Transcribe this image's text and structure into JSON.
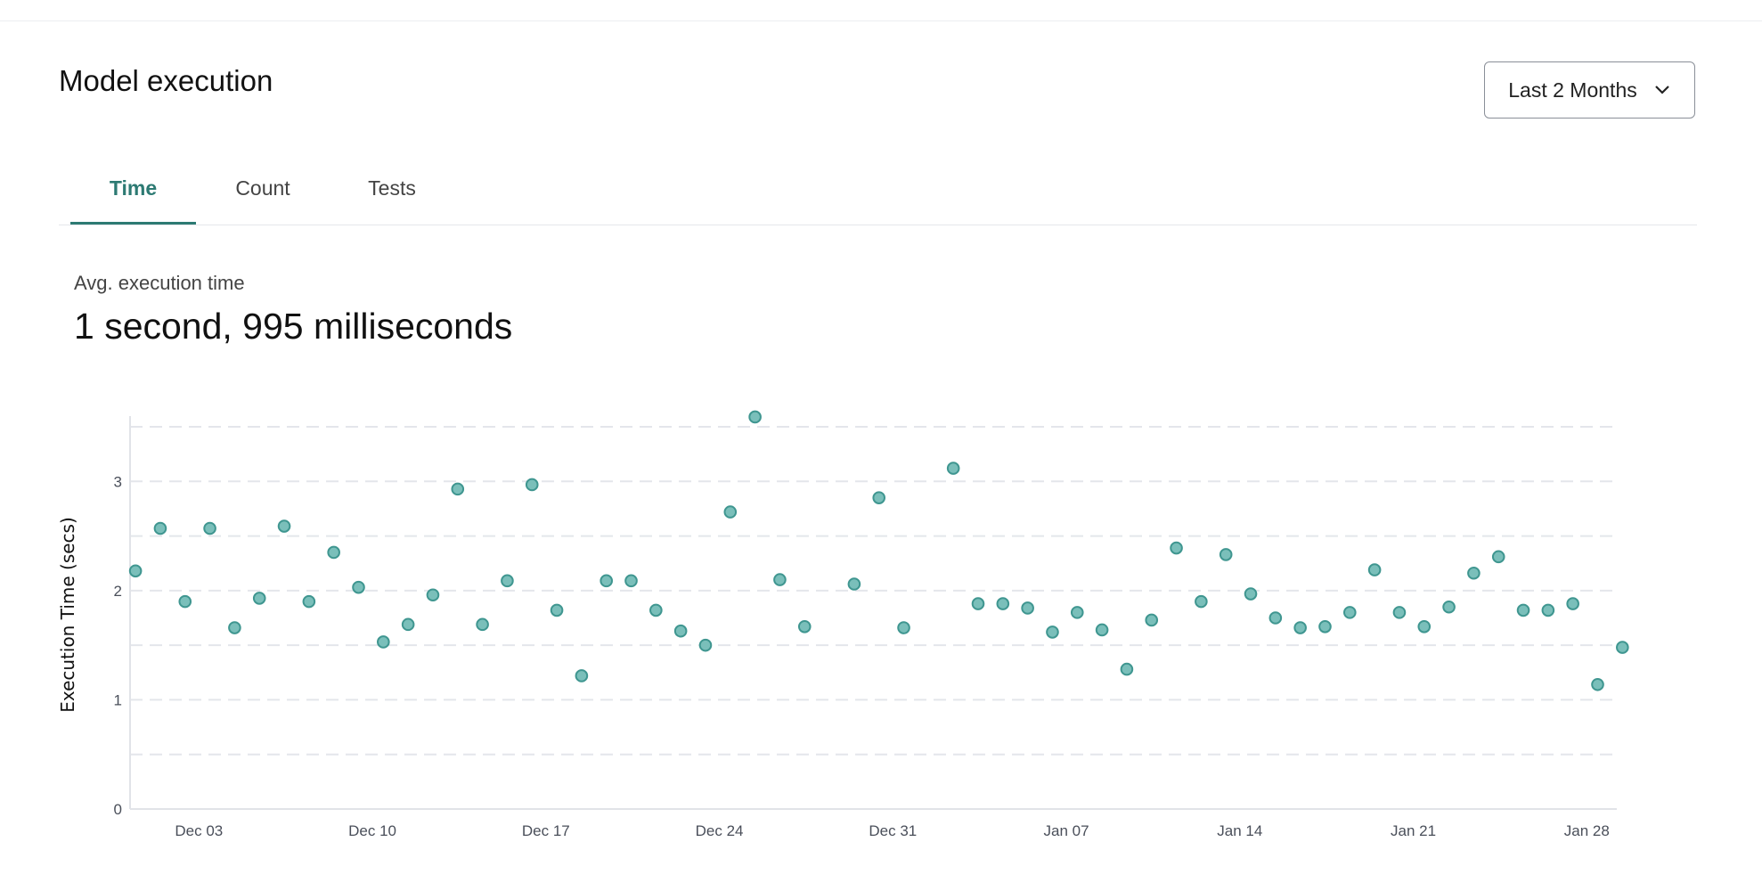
{
  "header": {
    "title": "Model execution",
    "range_dropdown": {
      "selected": "Last 2 Months",
      "icon": "chevron-down-icon"
    }
  },
  "tabs": [
    {
      "label": "Time",
      "active": true
    },
    {
      "label": "Count",
      "active": false
    },
    {
      "label": "Tests",
      "active": false
    }
  ],
  "summary": {
    "label": "Avg. execution time",
    "value": "1 second, 995 milliseconds"
  },
  "colors": {
    "accent": "#2d7a73",
    "point_fill": "#7abfba",
    "point_stroke": "#3f9690",
    "grid": "#e4e6eb"
  },
  "chart_data": {
    "type": "scatter",
    "ylabel": "Execution Time (secs)",
    "xlabel": "",
    "ylim": [
      0,
      3.5
    ],
    "yticks": [
      "0",
      "1",
      "2",
      "3"
    ],
    "xticks": [
      "Dec 03",
      "Dec 10",
      "Dec 17",
      "Dec 24",
      "Dec 31",
      "Jan 07",
      "Jan 14",
      "Jan 21",
      "Jan 28"
    ],
    "grid": "horizontal dashed, every 0.5",
    "points": [
      [
        "2023-12-01",
        2.18
      ],
      [
        "2023-12-02",
        2.57
      ],
      [
        "2023-12-03",
        1.9
      ],
      [
        "2023-12-04",
        2.57
      ],
      [
        "2023-12-05",
        1.66
      ],
      [
        "2023-12-06",
        1.93
      ],
      [
        "2023-12-07",
        2.59
      ],
      [
        "2023-12-08",
        1.9
      ],
      [
        "2023-12-09",
        2.35
      ],
      [
        "2023-12-10",
        2.03
      ],
      [
        "2023-12-11",
        1.53
      ],
      [
        "2023-12-12",
        1.69
      ],
      [
        "2023-12-13",
        1.96
      ],
      [
        "2023-12-14",
        2.93
      ],
      [
        "2023-12-15",
        1.69
      ],
      [
        "2023-12-16",
        2.09
      ],
      [
        "2023-12-17",
        2.97
      ],
      [
        "2023-12-18",
        1.82
      ],
      [
        "2023-12-19",
        1.22
      ],
      [
        "2023-12-20",
        2.09
      ],
      [
        "2023-12-21",
        2.09
      ],
      [
        "2023-12-22",
        1.82
      ],
      [
        "2023-12-23",
        1.63
      ],
      [
        "2023-12-24",
        1.5
      ],
      [
        "2023-12-25",
        2.72
      ],
      [
        "2023-12-26",
        3.59
      ],
      [
        "2023-12-27",
        2.1
      ],
      [
        "2023-12-28",
        1.67
      ],
      [
        "2023-12-30",
        2.06
      ],
      [
        "2023-12-31",
        2.85
      ],
      [
        "2024-01-01",
        1.66
      ],
      [
        "2024-01-03",
        3.12
      ],
      [
        "2024-01-04",
        1.88
      ],
      [
        "2024-01-05",
        1.88
      ],
      [
        "2024-01-06",
        1.84
      ],
      [
        "2024-01-07",
        1.62
      ],
      [
        "2024-01-08",
        1.8
      ],
      [
        "2024-01-09",
        1.64
      ],
      [
        "2024-01-10",
        1.28
      ],
      [
        "2024-01-11",
        1.73
      ],
      [
        "2024-01-12",
        2.39
      ],
      [
        "2024-01-13",
        1.9
      ],
      [
        "2024-01-14",
        2.33
      ],
      [
        "2024-01-15",
        1.97
      ],
      [
        "2024-01-16",
        1.75
      ],
      [
        "2024-01-17",
        1.66
      ],
      [
        "2024-01-18",
        1.67
      ],
      [
        "2024-01-19",
        1.8
      ],
      [
        "2024-01-20",
        2.19
      ],
      [
        "2024-01-21",
        1.8
      ],
      [
        "2024-01-22",
        1.67
      ],
      [
        "2024-01-23",
        1.85
      ],
      [
        "2024-01-24",
        2.16
      ],
      [
        "2024-01-25",
        2.31
      ],
      [
        "2024-01-26",
        1.82
      ],
      [
        "2024-01-27",
        1.82
      ],
      [
        "2024-01-28",
        1.88
      ],
      [
        "2024-01-29",
        1.14
      ],
      [
        "2024-01-30",
        1.48
      ]
    ]
  }
}
